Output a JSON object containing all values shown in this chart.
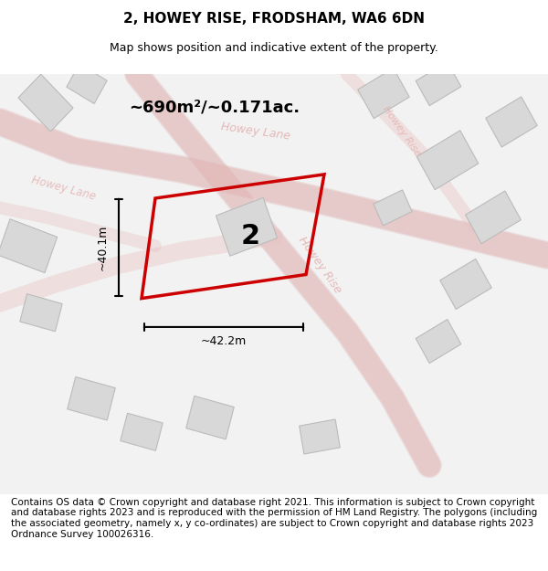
{
  "title": "2, HOWEY RISE, FRODSHAM, WA6 6DN",
  "subtitle": "Map shows position and indicative extent of the property.",
  "area_label": "~690m²/~0.171ac.",
  "plot_number": "2",
  "dim_width": "~42.2m",
  "dim_height": "~40.1m",
  "footer": "Contains OS data © Crown copyright and database right 2021. This information is subject to Crown copyright and database rights 2023 and is reproduced with the permission of HM Land Registry. The polygons (including the associated geometry, namely x, y co-ordinates) are subject to Crown copyright and database rights 2023 Ordnance Survey 100026316.",
  "bg_color": "#f0f0f0",
  "map_bg": "#f8f8f8",
  "plot_color": "#cc0000",
  "road_color": "#f0b0b0",
  "building_color": "#d8d8d8",
  "road_outline_color": "#e0e0e0",
  "title_fontsize": 11,
  "subtitle_fontsize": 9,
  "footer_fontsize": 7.5
}
